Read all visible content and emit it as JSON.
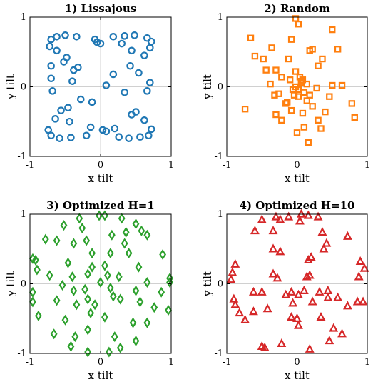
{
  "chart_data": [
    {
      "type": "scatter",
      "title": "1) Lissajous",
      "xlabel": "x tilt",
      "ylabel": "y tilt",
      "xlim": [
        -1,
        1
      ],
      "ylim": [
        -1,
        1
      ],
      "xticks": [
        "-1",
        "0",
        "1"
      ],
      "yticks": [
        "-1",
        "0",
        "1"
      ],
      "marker": "circle",
      "color": "#1f77b4",
      "points": [
        [
          -0.7,
          0.68
        ],
        [
          -0.62,
          0.72
        ],
        [
          -0.5,
          0.74
        ],
        [
          -0.34,
          0.72
        ],
        [
          -0.08,
          0.68
        ],
        [
          0.0,
          0.62
        ],
        [
          0.18,
          0.72
        ],
        [
          0.34,
          0.73
        ],
        [
          0.48,
          0.74
        ],
        [
          0.66,
          0.7
        ],
        [
          0.72,
          0.65
        ],
        [
          0.7,
          0.56
        ],
        [
          -0.72,
          0.58
        ],
        [
          -0.62,
          0.52
        ],
        [
          -0.48,
          0.42
        ],
        [
          -0.52,
          0.36
        ],
        [
          -0.38,
          0.24
        ],
        [
          -0.32,
          0.28
        ],
        [
          -0.7,
          0.12
        ],
        [
          -0.68,
          -0.06
        ],
        [
          -0.4,
          0.08
        ],
        [
          -0.28,
          -0.18
        ],
        [
          -0.12,
          -0.22
        ],
        [
          -0.56,
          -0.34
        ],
        [
          -0.46,
          -0.3
        ],
        [
          -0.64,
          -0.46
        ],
        [
          -0.44,
          -0.5
        ],
        [
          -0.74,
          -0.62
        ],
        [
          -0.7,
          -0.7
        ],
        [
          -0.58,
          -0.74
        ],
        [
          -0.42,
          -0.73
        ],
        [
          -0.2,
          -0.7
        ],
        [
          -0.14,
          -0.58
        ],
        [
          0.03,
          -0.62
        ],
        [
          0.08,
          -0.64
        ],
        [
          0.26,
          -0.72
        ],
        [
          0.4,
          -0.74
        ],
        [
          0.56,
          -0.72
        ],
        [
          0.68,
          -0.7
        ],
        [
          0.72,
          -0.61
        ],
        [
          0.5,
          -0.36
        ],
        [
          0.44,
          -0.4
        ],
        [
          0.62,
          -0.48
        ],
        [
          0.2,
          -0.6
        ],
        [
          0.66,
          -0.06
        ],
        [
          0.7,
          0.06
        ],
        [
          0.34,
          -0.08
        ],
        [
          0.54,
          0.2
        ],
        [
          0.42,
          0.3
        ],
        [
          0.62,
          0.45
        ],
        [
          0.44,
          0.52
        ],
        [
          0.08,
          0.02
        ],
        [
          -0.05,
          0.64
        ],
        [
          0.18,
          0.18
        ],
        [
          -0.7,
          0.3
        ],
        [
          0.3,
          0.62
        ]
      ]
    },
    {
      "type": "scatter",
      "title": "2) Random",
      "xlabel": "x tilt",
      "ylabel": "y tilt",
      "xlim": [
        -1,
        1
      ],
      "ylim": [
        -1,
        1
      ],
      "xticks": [
        "-1",
        "0",
        "1"
      ],
      "yticks": [
        "-1",
        "0",
        "1"
      ],
      "marker": "square",
      "color": "#ff7f0e",
      "points": [
        [
          -0.02,
          0.98
        ],
        [
          0.02,
          0.9
        ],
        [
          -0.66,
          0.7
        ],
        [
          -0.08,
          0.68
        ],
        [
          0.5,
          0.82
        ],
        [
          -0.36,
          0.56
        ],
        [
          -0.6,
          0.44
        ],
        [
          0.18,
          0.52
        ],
        [
          0.22,
          0.54
        ],
        [
          0.58,
          0.54
        ],
        [
          -0.48,
          0.4
        ],
        [
          -0.12,
          0.4
        ],
        [
          0.36,
          0.4
        ],
        [
          -0.44,
          0.24
        ],
        [
          -0.3,
          0.24
        ],
        [
          -0.1,
          0.1
        ],
        [
          0.04,
          0.14
        ],
        [
          0.06,
          0.06
        ],
        [
          0.14,
          0.04
        ],
        [
          -0.02,
          0.0
        ],
        [
          0.02,
          -0.04
        ],
        [
          -0.32,
          -0.12
        ],
        [
          -0.04,
          -0.12
        ],
        [
          0.02,
          -0.14
        ],
        [
          0.1,
          -0.08
        ],
        [
          0.18,
          -0.12
        ],
        [
          0.28,
          -0.02
        ],
        [
          0.5,
          0.02
        ],
        [
          0.64,
          0.02
        ],
        [
          0.78,
          -0.24
        ],
        [
          -0.74,
          -0.32
        ],
        [
          -0.3,
          -0.4
        ],
        [
          -0.14,
          -0.22
        ],
        [
          -0.08,
          -0.34
        ],
        [
          0.08,
          -0.38
        ],
        [
          0.4,
          -0.36
        ],
        [
          0.82,
          -0.44
        ],
        [
          -0.22,
          -0.48
        ],
        [
          0.3,
          -0.48
        ],
        [
          0.0,
          -0.66
        ],
        [
          0.1,
          -0.58
        ],
        [
          0.34,
          -0.6
        ],
        [
          0.16,
          -0.8
        ],
        [
          -0.22,
          0.14
        ],
        [
          0.06,
          0.08
        ],
        [
          -0.06,
          -0.04
        ],
        [
          0.14,
          -0.2
        ],
        [
          -0.26,
          -0.1
        ],
        [
          -0.16,
          -0.24
        ],
        [
          0.22,
          -0.28
        ],
        [
          0.46,
          -0.14
        ],
        [
          0.3,
          0.3
        ],
        [
          -0.38,
          0.04
        ],
        [
          0.08,
          0.1
        ],
        [
          -0.02,
          0.22
        ]
      ]
    },
    {
      "type": "scatter",
      "title": "3) Optimized H=1",
      "xlabel": "x tilt",
      "ylabel": "y tilt",
      "xlim": [
        -1,
        1
      ],
      "ylim": [
        -1,
        1
      ],
      "xticks": [
        "-1",
        "0",
        "1"
      ],
      "yticks": [
        "-1",
        "0",
        "1"
      ],
      "marker": "diamond",
      "color": "#2ca02c",
      "points": [
        [
          -0.02,
          0.98
        ],
        [
          0.06,
          0.98
        ],
        [
          -0.3,
          0.94
        ],
        [
          0.3,
          0.94
        ],
        [
          -0.52,
          0.84
        ],
        [
          0.5,
          0.86
        ],
        [
          0.58,
          0.76
        ],
        [
          0.66,
          0.7
        ],
        [
          -0.78,
          0.64
        ],
        [
          -0.62,
          0.62
        ],
        [
          -0.38,
          0.58
        ],
        [
          -0.2,
          0.62
        ],
        [
          0.16,
          0.7
        ],
        [
          0.34,
          0.58
        ],
        [
          -0.12,
          0.44
        ],
        [
          0.14,
          0.44
        ],
        [
          0.4,
          0.44
        ],
        [
          -0.92,
          0.34
        ],
        [
          -0.96,
          0.36
        ],
        [
          -0.46,
          0.3
        ],
        [
          -0.12,
          0.24
        ],
        [
          0.06,
          0.26
        ],
        [
          0.54,
          0.24
        ],
        [
          0.88,
          0.42
        ],
        [
          -0.72,
          0.12
        ],
        [
          -0.4,
          0.1
        ],
        [
          -0.18,
          0.14
        ],
        [
          0.0,
          0.02
        ],
        [
          0.1,
          0.12
        ],
        [
          0.26,
          0.1
        ],
        [
          0.66,
          0.02
        ],
        [
          0.98,
          0.08
        ],
        [
          -0.96,
          -0.26
        ],
        [
          -0.54,
          -0.02
        ],
        [
          -0.38,
          -0.1
        ],
        [
          -0.22,
          -0.08
        ],
        [
          0.14,
          -0.06
        ],
        [
          0.5,
          -0.1
        ],
        [
          0.86,
          -0.12
        ],
        [
          -0.62,
          -0.24
        ],
        [
          -0.18,
          -0.22
        ],
        [
          0.18,
          -0.18
        ],
        [
          0.28,
          -0.22
        ],
        [
          0.56,
          -0.26
        ],
        [
          -0.88,
          -0.46
        ],
        [
          -0.34,
          -0.3
        ],
        [
          -0.08,
          -0.3
        ],
        [
          0.76,
          -0.34
        ],
        [
          0.96,
          -0.38
        ],
        [
          -0.5,
          -0.52
        ],
        [
          -0.14,
          -0.42
        ],
        [
          0.06,
          -0.48
        ],
        [
          0.46,
          -0.56
        ],
        [
          0.66,
          -0.56
        ],
        [
          -0.66,
          -0.72
        ],
        [
          -0.36,
          -0.76
        ],
        [
          -0.18,
          -0.66
        ],
        [
          0.2,
          -0.76
        ],
        [
          0.5,
          -0.82
        ],
        [
          -0.42,
          -0.9
        ],
        [
          -0.18,
          -0.98
        ],
        [
          0.12,
          -0.98
        ],
        [
          0.28,
          -0.92
        ],
        [
          -0.96,
          -0.12
        ],
        [
          0.98,
          0.02
        ],
        [
          -0.26,
          0.8
        ],
        [
          0.36,
          0.74
        ],
        [
          -0.9,
          0.2
        ]
      ]
    },
    {
      "type": "scatter",
      "title": "4) Optimized H=10",
      "xlabel": "x tilt",
      "ylabel": "y tilt",
      "xlim": [
        -1,
        1
      ],
      "ylim": [
        -1,
        1
      ],
      "xticks": [
        "-1",
        "0",
        "1"
      ],
      "yticks": [
        "-1",
        "0",
        "1"
      ],
      "marker": "triangle",
      "color": "#d62728",
      "points": [
        [
          -0.3,
          0.96
        ],
        [
          0.06,
          1.0
        ],
        [
          -0.12,
          0.96
        ],
        [
          -0.24,
          0.92
        ],
        [
          0.16,
          0.98
        ],
        [
          0.3,
          0.96
        ],
        [
          -0.5,
          0.92
        ],
        [
          -0.6,
          0.76
        ],
        [
          -0.34,
          0.76
        ],
        [
          0.04,
          0.9
        ],
        [
          0.36,
          0.74
        ],
        [
          0.72,
          0.68
        ],
        [
          -0.34,
          0.5
        ],
        [
          -0.24,
          0.46
        ],
        [
          0.16,
          0.34
        ],
        [
          0.2,
          0.38
        ],
        [
          0.38,
          0.5
        ],
        [
          0.42,
          0.58
        ],
        [
          -0.88,
          0.28
        ],
        [
          -0.92,
          0.16
        ],
        [
          -0.34,
          0.14
        ],
        [
          -0.28,
          0.08
        ],
        [
          0.14,
          0.1
        ],
        [
          0.18,
          0.12
        ],
        [
          0.9,
          0.32
        ],
        [
          0.96,
          0.22
        ],
        [
          -0.94,
          0.06
        ],
        [
          -0.62,
          -0.12
        ],
        [
          -0.5,
          -0.12
        ],
        [
          -0.16,
          -0.16
        ],
        [
          -0.08,
          -0.12
        ],
        [
          0.02,
          -0.16
        ],
        [
          0.1,
          -0.1
        ],
        [
          0.32,
          -0.12
        ],
        [
          0.44,
          -0.1
        ],
        [
          0.58,
          -0.2
        ],
        [
          0.72,
          -0.32
        ],
        [
          0.86,
          -0.26
        ],
        [
          0.94,
          -0.26
        ],
        [
          -0.88,
          -0.3
        ],
        [
          -0.82,
          -0.42
        ],
        [
          -0.62,
          -0.4
        ],
        [
          -0.42,
          -0.36
        ],
        [
          -0.06,
          -0.28
        ],
        [
          0.22,
          -0.26
        ],
        [
          0.44,
          -0.2
        ],
        [
          -0.74,
          -0.52
        ],
        [
          -0.08,
          -0.48
        ],
        [
          0.0,
          -0.5
        ],
        [
          0.34,
          -0.48
        ],
        [
          0.52,
          -0.64
        ],
        [
          -0.5,
          -0.9
        ],
        [
          -0.46,
          -0.92
        ],
        [
          -0.22,
          -0.86
        ],
        [
          0.18,
          -0.94
        ],
        [
          0.46,
          -0.82
        ],
        [
          0.64,
          -0.72
        ],
        [
          0.02,
          -0.6
        ],
        [
          -0.9,
          -0.22
        ],
        [
          0.88,
          0.1
        ]
      ]
    }
  ]
}
